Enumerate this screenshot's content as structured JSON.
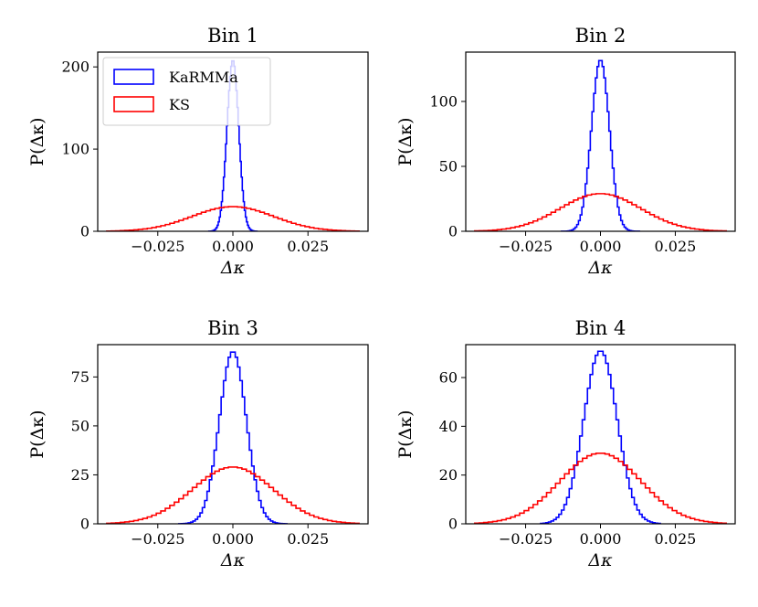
{
  "chart_data": [
    {
      "type": "histogram",
      "title": "Bin 1",
      "xlabel": "Δκ",
      "ylabel": "P(Δκ)",
      "xlim": [
        -0.045,
        0.045
      ],
      "ylim": [
        0,
        218
      ],
      "xticks": [
        -0.025,
        0.0,
        0.025
      ],
      "xtick_labels": [
        "−0.025",
        "0.000",
        "0.025"
      ],
      "yticks": [
        0,
        100,
        200
      ],
      "ytick_labels": [
        "0",
        "100",
        "200"
      ],
      "legend": {
        "position": "upper-left",
        "entries": [
          {
            "name": "KaRMMa",
            "color": "#0000ff"
          },
          {
            "name": "KS",
            "color": "#ff0000"
          }
        ]
      },
      "series": [
        {
          "name": "KaRMMa",
          "color": "#0000ff",
          "mean": 0.0,
          "sigma": 0.00195,
          "peak": 208,
          "range": [
            -0.008,
            0.008
          ],
          "n_bins": 46
        },
        {
          "name": "KS",
          "color": "#ff0000",
          "mean": 0.0,
          "sigma": 0.0135,
          "peak": 30,
          "range": [
            -0.042,
            0.042
          ],
          "n_bins": 56
        }
      ]
    },
    {
      "type": "histogram",
      "title": "Bin 2",
      "xlabel": "Δκ",
      "ylabel": "P(Δκ)",
      "xlim": [
        -0.045,
        0.045
      ],
      "ylim": [
        0,
        138
      ],
      "xticks": [
        -0.025,
        0.0,
        0.025
      ],
      "xtick_labels": [
        "−0.025",
        "0.000",
        "0.025"
      ],
      "yticks": [
        0,
        50,
        100
      ],
      "ytick_labels": [
        "0",
        "50",
        "100"
      ],
      "series": [
        {
          "name": "KaRMMa",
          "color": "#0000ff",
          "mean": 0.0,
          "sigma": 0.003,
          "peak": 132,
          "range": [
            -0.013,
            0.013
          ],
          "n_bins": 46
        },
        {
          "name": "KS",
          "color": "#ff0000",
          "mean": 0.0,
          "sigma": 0.0135,
          "peak": 29,
          "range": [
            -0.042,
            0.042
          ],
          "n_bins": 56
        }
      ]
    },
    {
      "type": "histogram",
      "title": "Bin 3",
      "xlabel": "Δκ",
      "ylabel": "P(Δκ)",
      "xlim": [
        -0.045,
        0.045
      ],
      "ylim": [
        0,
        91.5
      ],
      "xticks": [
        -0.025,
        0.0,
        0.025
      ],
      "xtick_labels": [
        "−0.025",
        "0.000",
        "0.025"
      ],
      "yticks": [
        0,
        25,
        50,
        75
      ],
      "ytick_labels": [
        "0",
        "25",
        "50",
        "75"
      ],
      "series": [
        {
          "name": "KaRMMa",
          "color": "#0000ff",
          "mean": 0.0,
          "sigma": 0.0045,
          "peak": 88,
          "range": [
            -0.018,
            0.018
          ],
          "n_bins": 46
        },
        {
          "name": "KS",
          "color": "#ff0000",
          "mean": 0.0,
          "sigma": 0.0135,
          "peak": 29,
          "range": [
            -0.042,
            0.042
          ],
          "n_bins": 56
        }
      ]
    },
    {
      "type": "histogram",
      "title": "Bin 4",
      "xlabel": "Δκ",
      "ylabel": "P(Δκ)",
      "xlim": [
        -0.045,
        0.045
      ],
      "ylim": [
        0,
        73.5
      ],
      "xticks": [
        -0.025,
        0.0,
        0.025
      ],
      "xtick_labels": [
        "−0.025",
        "0.000",
        "0.025"
      ],
      "yticks": [
        0,
        20,
        40,
        60
      ],
      "ytick_labels": [
        "0",
        "20",
        "40",
        "60"
      ],
      "series": [
        {
          "name": "KaRMMa",
          "color": "#0000ff",
          "mean": 0.0,
          "sigma": 0.0056,
          "peak": 71,
          "range": [
            -0.02,
            0.02
          ],
          "n_bins": 46
        },
        {
          "name": "KS",
          "color": "#ff0000",
          "mean": 0.0,
          "sigma": 0.0135,
          "peak": 29,
          "range": [
            -0.042,
            0.042
          ],
          "n_bins": 56
        }
      ]
    }
  ]
}
